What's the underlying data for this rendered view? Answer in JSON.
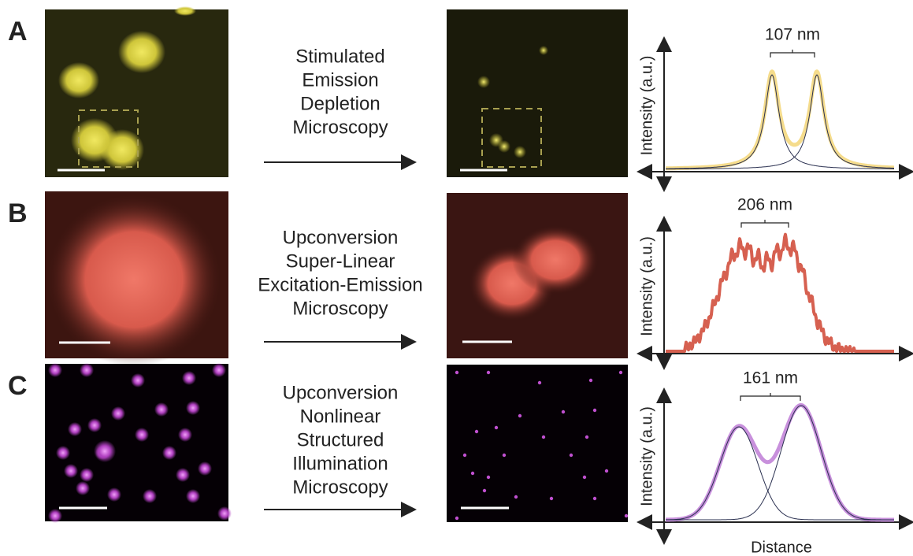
{
  "panels": [
    {
      "label": "A",
      "method": [
        "Stimulated",
        "Emission",
        "Depletion",
        "Microscopy"
      ],
      "separation": "107 nm",
      "y_label": "Intensity (a.u.)"
    },
    {
      "label": "B",
      "method": [
        "Upconversion",
        "Super-Linear",
        "Excitation-Emission",
        "Microscopy"
      ],
      "separation": "206 nm",
      "y_label": "Intensity (a.u.)"
    },
    {
      "label": "C",
      "method": [
        "Upconversion",
        "Nonlinear",
        "Structured",
        "Illumination",
        "Microscopy"
      ],
      "separation": "161 nm",
      "y_label": "Intensity (a.u.)"
    }
  ],
  "x_label": "Distance"
}
